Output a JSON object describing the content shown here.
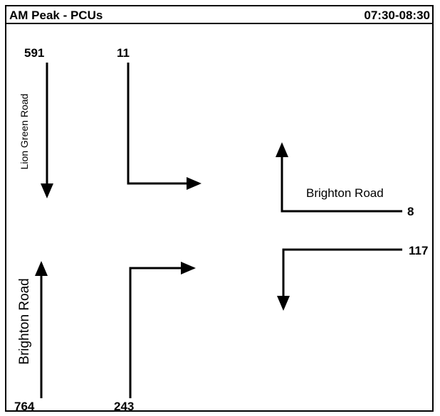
{
  "header": {
    "title": "AM Peak - PCUs",
    "period": "07:30-08:30"
  },
  "roads": {
    "north": "Lion Green Road",
    "east": "Brighton Road",
    "south": "Brighton Road"
  },
  "flows": {
    "north_ahead": 591,
    "north_left": 11,
    "east_right": 8,
    "east_left": 117,
    "south_ahead": 764,
    "south_right": 243
  }
}
